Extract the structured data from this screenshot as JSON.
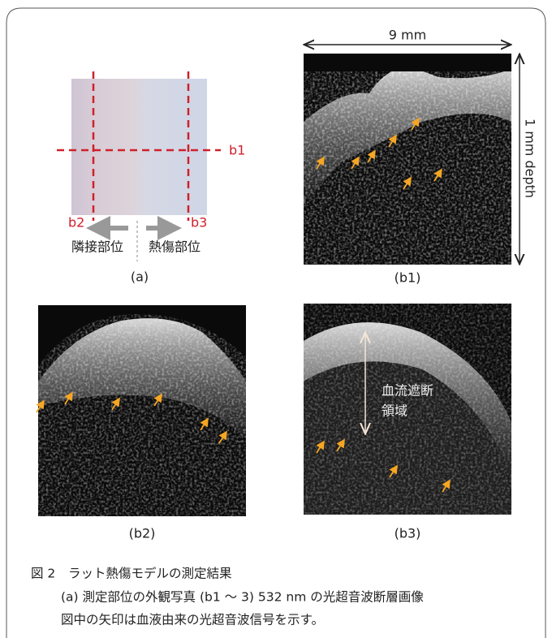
{
  "figure": {
    "panel_a": {
      "line_labels": [
        "b1",
        "b2",
        "b3"
      ],
      "left_label": "隣接部位",
      "right_label": "熱傷部位",
      "caption": "(a)"
    },
    "panel_b1": {
      "width_label": "9 mm",
      "depth_label": "1 mm depth",
      "caption": "(b1)"
    },
    "panel_b2": {
      "caption": "(b2)"
    },
    "panel_b3": {
      "annotation": [
        "血流遮断",
        "領域"
      ],
      "caption": "(b3)"
    }
  },
  "caption": {
    "label": "図 2",
    "title": "ラット熱傷モデルの測定結果",
    "lines": [
      "(a) 測定部位の外観写真 (b1 ～ 3) 532 nm の光超音波断層画像",
      "図中の矢印は血液由来の光超音波信号を示す。"
    ]
  }
}
